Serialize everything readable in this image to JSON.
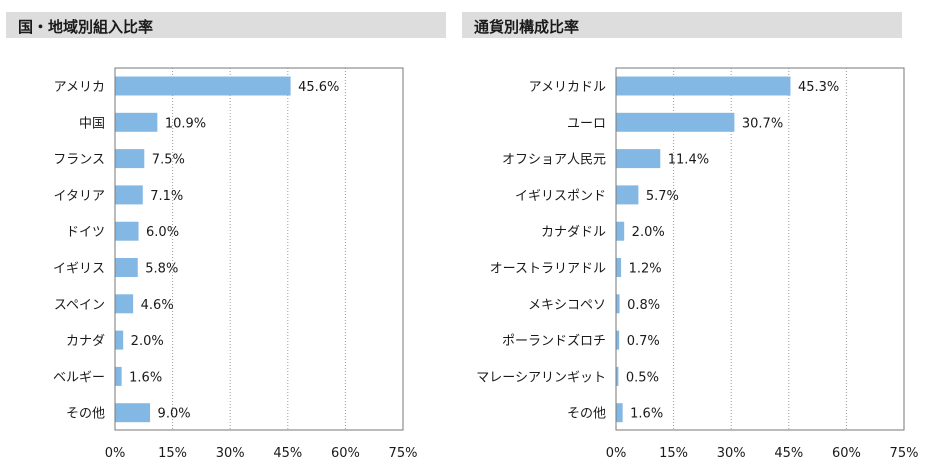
{
  "colors": {
    "bar": "#84b8e4",
    "title_bg": "#dddddd",
    "grid": "#9a9a9a",
    "frame": "#777777",
    "text": "#1a1a1a"
  },
  "chart_data": [
    {
      "type": "bar",
      "orientation": "horizontal",
      "title": "国・地域別組入比率",
      "categories": [
        "アメリカ",
        "中国",
        "フランス",
        "イタリア",
        "ドイツ",
        "イギリス",
        "スペイン",
        "カナダ",
        "ベルギー",
        "その他"
      ],
      "values": [
        45.6,
        10.9,
        7.5,
        7.1,
        6.0,
        5.8,
        4.6,
        2.0,
        1.6,
        9.0
      ],
      "value_labels": [
        "45.6%",
        "10.9%",
        "7.5%",
        "7.1%",
        "6.0%",
        "5.8%",
        "4.6%",
        "2.0%",
        "1.6%",
        "9.0%"
      ],
      "xlim": [
        0,
        75
      ],
      "x_ticks": [
        "0%",
        "15%",
        "30%",
        "45%",
        "60%",
        "75%"
      ],
      "grid": "vertical dotted",
      "xlabel": "",
      "ylabel": ""
    },
    {
      "type": "bar",
      "orientation": "horizontal",
      "title": "通貨別構成比率",
      "categories": [
        "アメリカドル",
        "ユーロ",
        "オフショア人民元",
        "イギリスポンド",
        "カナダドル",
        "オーストラリアドル",
        "メキシコペソ",
        "ポーランドズロチ",
        "マレーシアリンギット",
        "その他"
      ],
      "values": [
        45.3,
        30.7,
        11.4,
        5.7,
        2.0,
        1.2,
        0.8,
        0.7,
        0.5,
        1.6
      ],
      "value_labels": [
        "45.3%",
        "30.7%",
        "11.4%",
        "5.7%",
        "2.0%",
        "1.2%",
        "0.8%",
        "0.7%",
        "0.5%",
        "1.6%"
      ],
      "xlim": [
        0,
        75
      ],
      "x_ticks": [
        "0%",
        "15%",
        "30%",
        "45%",
        "60%",
        "75%"
      ],
      "grid": "vertical dotted",
      "xlabel": "",
      "ylabel": ""
    }
  ]
}
